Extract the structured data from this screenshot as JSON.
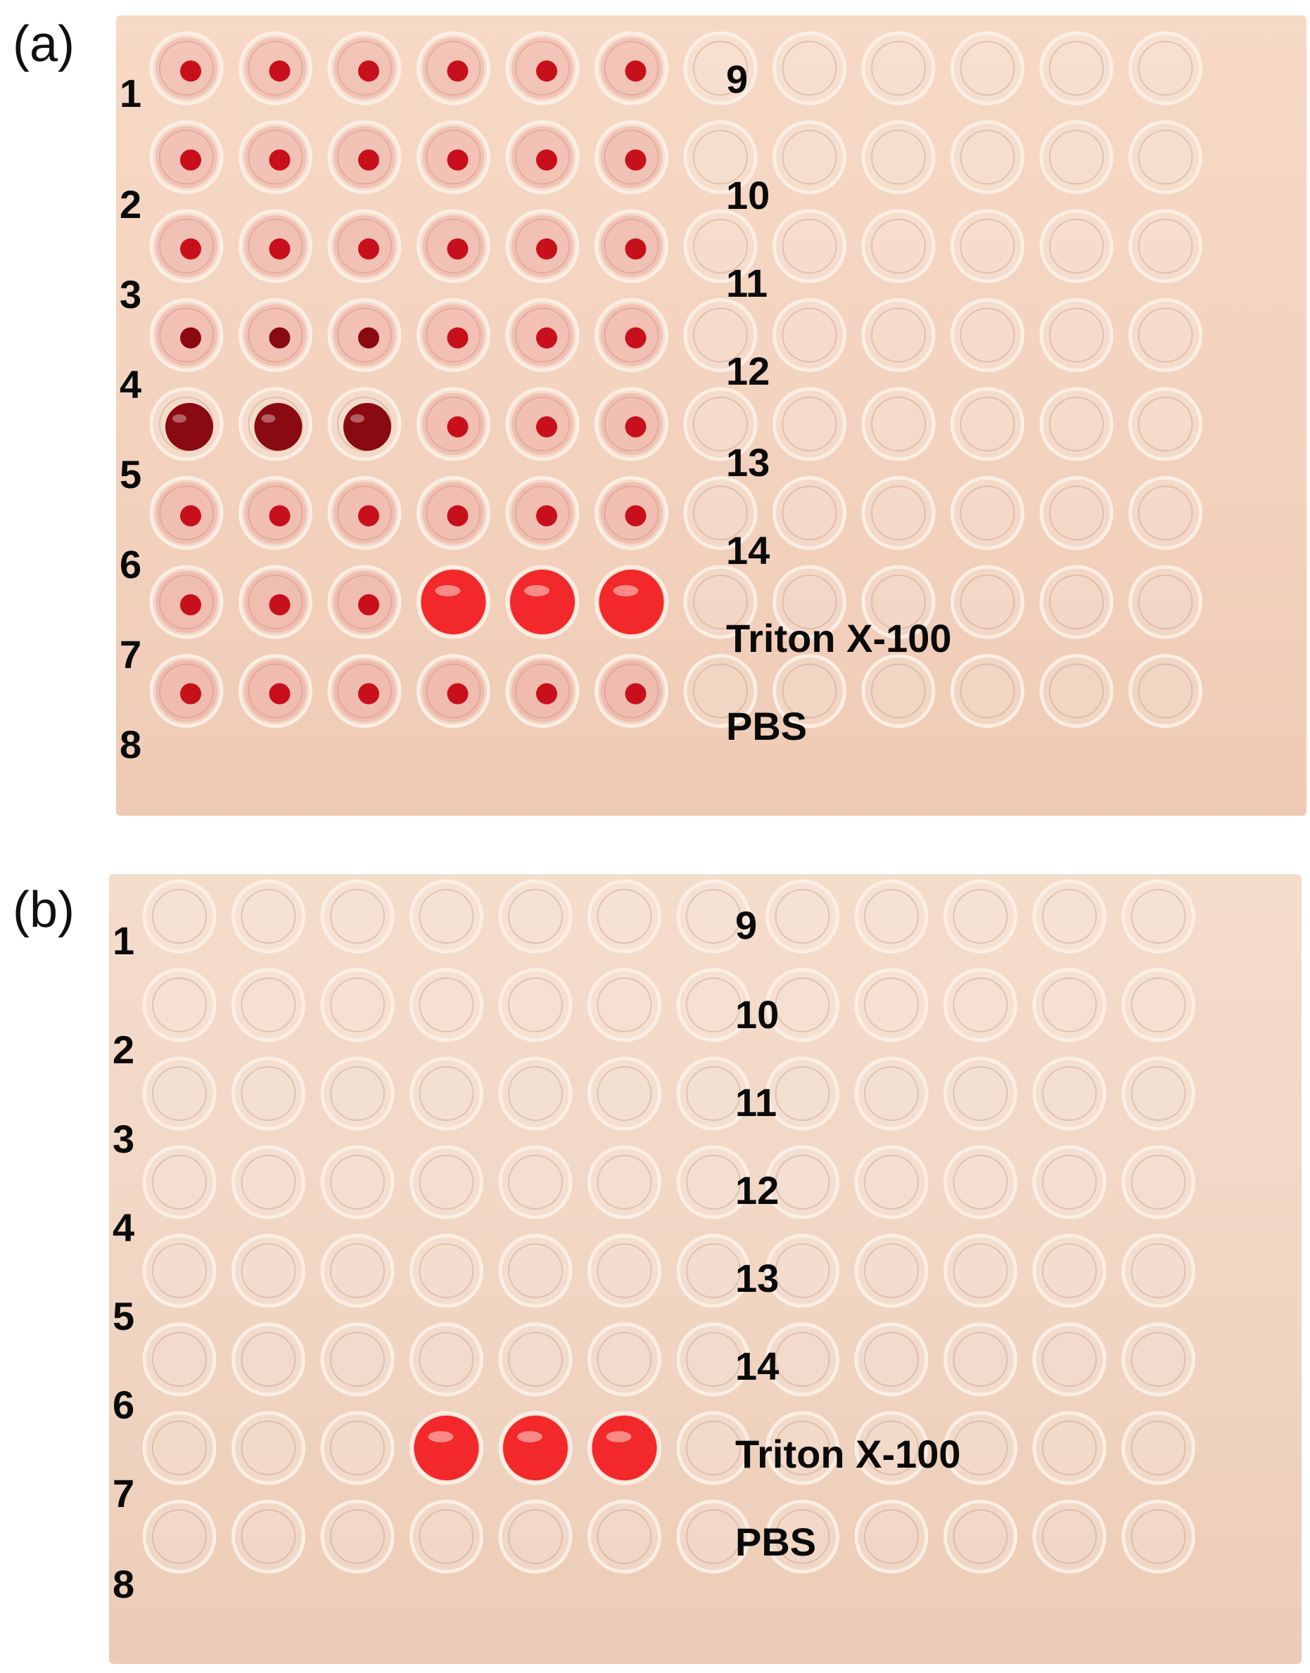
{
  "panels": [
    {
      "label": "(a)",
      "row_labels": [
        "1",
        "2",
        "3",
        "4",
        "5",
        "6",
        "7",
        "8"
      ],
      "sample_labels": [
        "9",
        "10",
        "11",
        "12",
        "13",
        "14",
        "Triton X-100",
        "PBS"
      ],
      "well_state": [
        [
          "dot",
          "dot",
          "dot",
          "dot",
          "dot",
          "dot",
          "empty",
          "empty",
          "empty",
          "empty",
          "empty",
          "empty"
        ],
        [
          "dot",
          "dot",
          "dot",
          "dot",
          "dot",
          "dot",
          "empty",
          "empty",
          "empty",
          "empty",
          "empty",
          "empty"
        ],
        [
          "dot",
          "dot",
          "dot",
          "dot",
          "dot",
          "dot",
          "empty",
          "empty",
          "empty",
          "empty",
          "empty",
          "empty"
        ],
        [
          "dark",
          "dark",
          "dark",
          "dot",
          "dot",
          "dot",
          "empty",
          "empty",
          "empty",
          "empty",
          "empty",
          "empty"
        ],
        [
          "big",
          "big",
          "big",
          "dot",
          "dot",
          "dot",
          "empty",
          "empty",
          "empty",
          "empty",
          "empty",
          "empty"
        ],
        [
          "dot",
          "dot",
          "dot",
          "dot",
          "dot",
          "dot",
          "empty",
          "empty",
          "empty",
          "empty",
          "empty",
          "empty"
        ],
        [
          "dot",
          "dot",
          "dot",
          "lysed",
          "lysed",
          "lysed",
          "empty",
          "empty",
          "empty",
          "empty",
          "empty",
          "empty"
        ],
        [
          "dot",
          "dot",
          "dot",
          "dot",
          "dot",
          "dot",
          "empty",
          "empty",
          "empty",
          "empty",
          "empty",
          "empty"
        ]
      ]
    },
    {
      "label": "(b)",
      "row_labels": [
        "1",
        "2",
        "3",
        "4",
        "5",
        "6",
        "7",
        "8"
      ],
      "sample_labels": [
        "9",
        "10",
        "11",
        "12",
        "13",
        "14",
        "Triton X-100",
        "PBS"
      ],
      "well_state": [
        [
          "empty",
          "empty",
          "empty",
          "empty",
          "empty",
          "empty",
          "empty",
          "empty",
          "empty",
          "empty",
          "empty",
          "empty"
        ],
        [
          "empty",
          "empty",
          "empty",
          "empty",
          "empty",
          "empty",
          "empty",
          "empty",
          "empty",
          "empty",
          "empty",
          "empty"
        ],
        [
          "empty",
          "empty",
          "empty",
          "empty",
          "empty",
          "empty",
          "empty",
          "empty",
          "empty",
          "empty",
          "empty",
          "empty"
        ],
        [
          "empty",
          "empty",
          "empty",
          "empty",
          "empty",
          "empty",
          "empty",
          "empty",
          "empty",
          "empty",
          "empty",
          "empty"
        ],
        [
          "empty",
          "empty",
          "empty",
          "empty",
          "empty",
          "empty",
          "empty",
          "empty",
          "empty",
          "empty",
          "empty",
          "empty"
        ],
        [
          "empty",
          "empty",
          "empty",
          "empty",
          "empty",
          "empty",
          "empty",
          "empty",
          "empty",
          "empty",
          "empty",
          "empty"
        ],
        [
          "empty",
          "empty",
          "empty",
          "lysed",
          "lysed",
          "lysed",
          "empty",
          "empty",
          "empty",
          "empty",
          "empty",
          "empty"
        ],
        [
          "empty",
          "empty",
          "empty",
          "empty",
          "empty",
          "empty",
          "empty",
          "empty",
          "empty",
          "empty",
          "empty",
          "empty"
        ]
      ]
    }
  ],
  "colors": {
    "plate": "#f3d3bf",
    "blood_dot": "#c8101c",
    "blood_dark": "#8a0a12",
    "lysed": "#f2282a",
    "well_rim": "#fbeee4"
  }
}
